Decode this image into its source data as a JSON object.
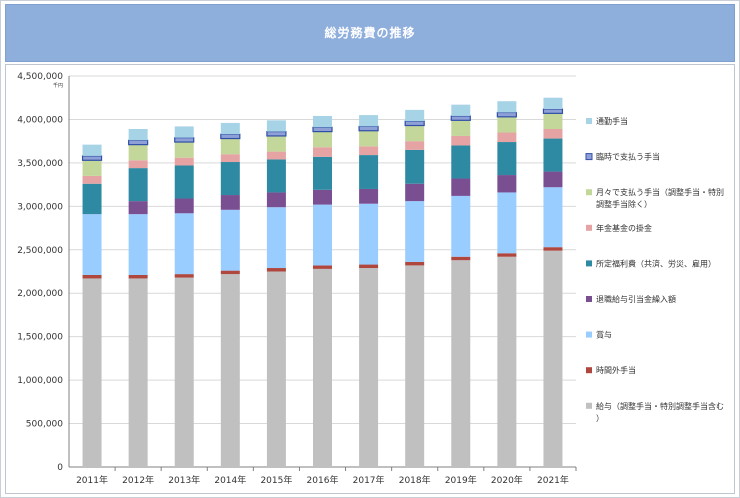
{
  "header": {
    "title": "総労務費の推移"
  },
  "chart_data": {
    "type": "bar",
    "stacked": true,
    "unit": "千円",
    "ylim": [
      0,
      4500000
    ],
    "yticks": [
      0,
      500000,
      1000000,
      1500000,
      2000000,
      2500000,
      3000000,
      3500000,
      4000000,
      4500000
    ],
    "ytick_labels": [
      "0",
      "500,000",
      "1,000,000",
      "1,500,000",
      "2,000,000",
      "2,500,000",
      "3,000,000",
      "3,500,000",
      "4,000,000",
      "4,500,000"
    ],
    "grid": true,
    "legend_position": "right",
    "categories": [
      "2011年",
      "2012年",
      "2013年",
      "2014年",
      "2015年",
      "2016年",
      "2017年",
      "2018年",
      "2019年",
      "2020年",
      "2021年"
    ],
    "series": [
      {
        "name": "給与（調整手当・特別調整手当含む）",
        "color": "#c0c0c0",
        "values": [
          2170000,
          2170000,
          2180000,
          2220000,
          2250000,
          2280000,
          2290000,
          2320000,
          2380000,
          2420000,
          2490000
        ]
      },
      {
        "name": "時間外手当",
        "color": "#b0473f",
        "values": [
          40000,
          40000,
          40000,
          40000,
          40000,
          40000,
          40000,
          40000,
          40000,
          40000,
          40000
        ]
      },
      {
        "name": "賞与",
        "color": "#99ccff",
        "values": [
          700000,
          700000,
          700000,
          700000,
          700000,
          700000,
          700000,
          700000,
          700000,
          700000,
          690000
        ]
      },
      {
        "name": "退職給与引当金繰入額",
        "color": "#7a4f92",
        "values": [
          0,
          150000,
          170000,
          170000,
          170000,
          170000,
          170000,
          200000,
          200000,
          200000,
          180000
        ]
      },
      {
        "name": "所定福利費（共済、労災、雇用）",
        "color": "#2e8aa3",
        "values": [
          350000,
          380000,
          380000,
          380000,
          380000,
          380000,
          390000,
          390000,
          380000,
          380000,
          380000
        ]
      },
      {
        "name": "年金基金の掛金",
        "color": "#e5a3a3",
        "values": [
          90000,
          90000,
          90000,
          90000,
          90000,
          110000,
          100000,
          100000,
          110000,
          110000,
          110000
        ]
      },
      {
        "name": "月々で支払う手当（調整手当・特別調整手当除く）",
        "color": "#c4d79b",
        "values": [
          180000,
          180000,
          180000,
          180000,
          180000,
          180000,
          180000,
          180000,
          180000,
          180000,
          180000
        ]
      },
      {
        "name": "臨時で支払う手当",
        "color": "#8fa0d6",
        "values": [
          50000,
          50000,
          50000,
          50000,
          50000,
          50000,
          50000,
          50000,
          50000,
          50000,
          50000
        ]
      },
      {
        "name": "通勤手当",
        "color": "#a6d3e6",
        "values": [
          130000,
          130000,
          130000,
          130000,
          130000,
          130000,
          130000,
          130000,
          130000,
          130000,
          130000
        ]
      }
    ]
  }
}
